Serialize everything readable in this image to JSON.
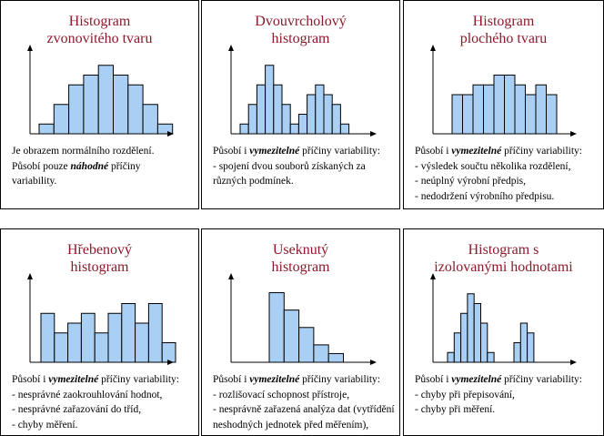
{
  "colors": {
    "title": "#8b1a2b",
    "bar_fill": "#a9cff4",
    "border": "#000000"
  },
  "panels": [
    {
      "title": "Histogram\nzvonovitého tvaru",
      "description": [
        [
          {
            "t": "Je obrazem normálního rozdělení."
          }
        ],
        [
          {
            "t": "Působí pouze "
          },
          {
            "t": "náhodné",
            "em": true
          },
          {
            "t": " příčiny"
          }
        ],
        [
          {
            "t": "variability."
          }
        ]
      ],
      "chart_data": {
        "type": "bar",
        "values": [
          1,
          3,
          5,
          6,
          7,
          6,
          5,
          3,
          1
        ],
        "ylim": [
          0,
          8
        ]
      }
    },
    {
      "title": "Dvouvrcholový\nhistogram",
      "description": [
        [
          {
            "t": "Působí i "
          },
          {
            "t": "vymezitelné",
            "em": true
          },
          {
            "t": " příčiny variability:"
          }
        ],
        [
          {
            "t": "- spojení dvou souborů získaných za"
          }
        ],
        [
          {
            "t": "různých podmínek."
          }
        ]
      ],
      "chart_data": {
        "type": "bar",
        "values": [
          1,
          3,
          5,
          7,
          5,
          3,
          1,
          2,
          4,
          5,
          4,
          3,
          1
        ],
        "ylim": [
          0,
          8
        ]
      }
    },
    {
      "title": "Histogram\nplochého tvaru",
      "description": [
        [
          {
            "t": "Působí i "
          },
          {
            "t": "vymezitelné",
            "em": true
          },
          {
            "t": " příčiny variability:"
          }
        ],
        [
          {
            "t": "- výsledek součtu několika rozdělení,"
          }
        ],
        [
          {
            "t": "- neúplný výrobní předpis,"
          }
        ],
        [
          {
            "t": "- nedodržení výrobního předpisu."
          }
        ]
      ],
      "chart_data": {
        "type": "bar",
        "values": [
          4,
          4,
          5,
          5,
          6,
          6,
          5,
          4,
          5,
          4
        ],
        "ylim": [
          0,
          8
        ]
      }
    },
    {
      "title": "Hřebenový\nhistogram",
      "description": [
        [
          {
            "t": "Působí i "
          },
          {
            "t": "vymezitelné",
            "em": true
          },
          {
            "t": " příčiny variability:"
          }
        ],
        [
          {
            "t": "- nesprávné zaokrouhlování hodnot,"
          }
        ],
        [
          {
            "t": "- nesprávné zařazování do tříd,"
          }
        ],
        [
          {
            "t": "- chyby měření."
          }
        ]
      ],
      "chart_data": {
        "type": "bar",
        "values": [
          5,
          3,
          4,
          5,
          3,
          5,
          6,
          4,
          6,
          2
        ],
        "ylim": [
          0,
          8
        ]
      }
    },
    {
      "title": "Useknutý\nhistogram",
      "description": [
        [
          {
            "t": "Působí i "
          },
          {
            "t": "vymezitelné",
            "em": true
          },
          {
            "t": " příčiny variability:"
          }
        ],
        [
          {
            "t": "- rozlišovací schopnost přístroje,"
          }
        ],
        [
          {
            "t": "- nesprávně zařazená analýza dat (vytřídění"
          }
        ],
        [
          {
            "t": "neshodných jednotek před měřením),"
          }
        ]
      ],
      "chart_data": {
        "type": "bar",
        "values": [
          8,
          6,
          4,
          2,
          1
        ],
        "ylim": [
          0,
          9
        ]
      }
    },
    {
      "title": "Histogram s\nizolovanými hodnotami",
      "description": [
        [
          {
            "t": "Působí i "
          },
          {
            "t": "vymezitelné",
            "em": true
          },
          {
            "t": " příčiny variability:"
          }
        ],
        [
          {
            "t": "- chyby při přepisování,"
          }
        ],
        [
          {
            "t": "- chyby při měření."
          }
        ]
      ],
      "chart_data": {
        "type": "bar",
        "values": [
          1,
          3,
          5,
          7,
          6,
          4,
          1,
          0,
          0,
          0,
          2,
          4,
          3
        ],
        "ylim": [
          0,
          8
        ]
      }
    }
  ]
}
